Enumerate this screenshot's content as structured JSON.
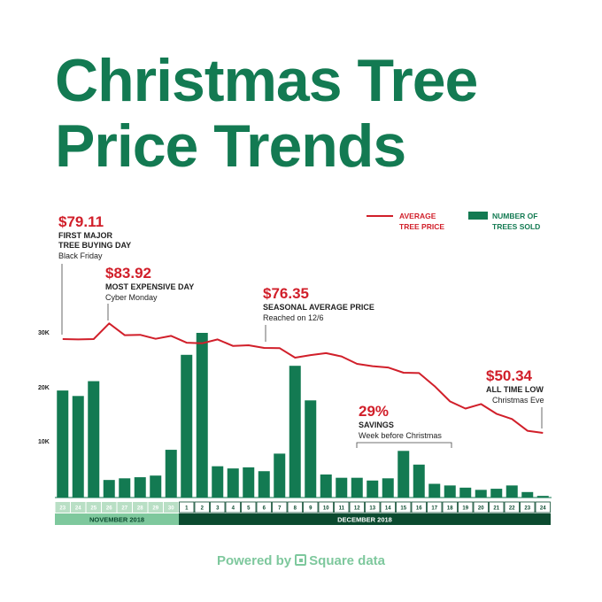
{
  "chart_data": {
    "type": "bar",
    "title_lines": [
      "Christmas Tree",
      "Price Trends"
    ],
    "categories": [
      "23",
      "24",
      "25",
      "26",
      "27",
      "28",
      "29",
      "30",
      "1",
      "2",
      "3",
      "4",
      "5",
      "6",
      "7",
      "8",
      "9",
      "10",
      "11",
      "12",
      "13",
      "14",
      "15",
      "16",
      "17",
      "18",
      "19",
      "20",
      "21",
      "22",
      "23",
      "24"
    ],
    "series": [
      {
        "name": "NUMBER OF TREES SOLD",
        "kind": "bar",
        "color": "#137a52",
        "values": [
          19500,
          18500,
          21200,
          3200,
          3500,
          3700,
          4000,
          8700,
          26000,
          30000,
          5700,
          5300,
          5500,
          4800,
          8000,
          24000,
          17700,
          4200,
          3600,
          3600,
          3100,
          3500,
          8500,
          6000,
          2500,
          2200,
          1800,
          1400,
          1600,
          2200,
          1000,
          300
        ]
      },
      {
        "name": "AVERAGE TREE PRICE",
        "kind": "line",
        "color": "#d11f2a",
        "values": [
          79.11,
          79.0,
          79.1,
          83.92,
          80.3,
          80.4,
          79.2,
          80.1,
          78.0,
          77.8,
          79.0,
          77.0,
          77.2,
          76.4,
          76.35,
          73.4,
          74.2,
          74.8,
          73.8,
          71.5,
          70.8,
          70.4,
          68.8,
          68.7,
          64.7,
          60.0,
          57.8,
          59.2,
          56.2,
          54.6,
          51.0,
          50.34
        ]
      }
    ],
    "yticks": [
      {
        "label": "30K",
        "value": 30000
      },
      {
        "label": "20K",
        "value": 20000
      },
      {
        "label": "10K",
        "value": 10000
      }
    ],
    "ylim": [
      0,
      31000
    ],
    "months": [
      {
        "label": "NOVEMBER 2018",
        "start_index": 0,
        "end_index": 7,
        "bar_color": "#7ec89d",
        "tick_bg": "#b9dfc5",
        "tick_fg": "#ffffff"
      },
      {
        "label": "DECEMBER 2018",
        "start_index": 8,
        "end_index": 31,
        "bar_color": "#0b4a2f",
        "tick_bg": "#ffffff",
        "tick_fg": "#0b4a2f"
      }
    ],
    "legend": {
      "price_line1": "AVERAGE",
      "price_line2": "TREE PRICE",
      "trees_line1": "NUMBER OF",
      "trees_line2": "TREES SOLD"
    },
    "annotations": {
      "black_friday": {
        "price": "$79.11",
        "line1": "FIRST MAJOR",
        "line2": "TREE BUYING DAY",
        "sub": "Black Friday"
      },
      "cyber_monday": {
        "price": "$83.92",
        "line1": "MOST EXPENSIVE DAY",
        "sub": "Cyber Monday"
      },
      "seasonal_avg": {
        "price": "$76.35",
        "line1": "SEASONAL AVERAGE PRICE",
        "sub": "Reached on 12/6"
      },
      "savings": {
        "price": "29%",
        "line1": "SAVINGS",
        "sub": "Week before Christmas"
      },
      "all_time_low": {
        "price": "$50.34",
        "line1": "ALL TIME LOW",
        "sub": "Christmas Eve"
      }
    }
  },
  "footer": {
    "prefix": "Powered by",
    "brand": "Square data",
    "icon": "square-logo-icon"
  }
}
